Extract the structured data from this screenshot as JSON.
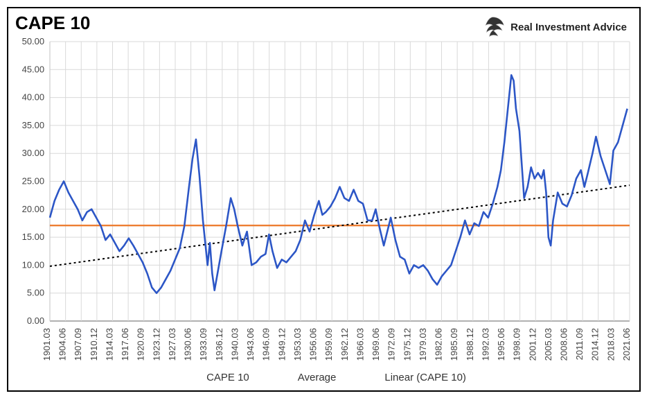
{
  "title": "CAPE 10",
  "brand": "Real Investment Advice",
  "chart": {
    "type": "line",
    "background_color": "#ffffff",
    "grid_color": "#d9d9d9",
    "axis_color": "#808080",
    "label_fontsize": 13,
    "title_fontsize": 26,
    "ylim": [
      0,
      50
    ],
    "ytick_step": 5,
    "ytick_labels": [
      "0.00",
      "5.00",
      "10.00",
      "15.00",
      "20.00",
      "25.00",
      "30.00",
      "35.00",
      "40.00",
      "45.00",
      "50.00"
    ],
    "x_categories": [
      "1901.03",
      "1904.06",
      "1907.09",
      "1910.12",
      "1914.03",
      "1917.06",
      "1920.09",
      "1923.12",
      "1927.03",
      "1930.06",
      "1933.09",
      "1936.12",
      "1940.03",
      "1943.06",
      "1946.09",
      "1949.12",
      "1953.03",
      "1956.06",
      "1959.09",
      "1962.12",
      "1966.03",
      "1969.06",
      "1972.09",
      "1975.12",
      "1979.03",
      "1982.06",
      "1985.09",
      "1988.12",
      "1992.03",
      "1995.06",
      "1998.09",
      "2001.12",
      "2005.03",
      "2008.06",
      "2011.09",
      "2014.12",
      "2018.03",
      "2021.06"
    ],
    "series": [
      {
        "name": "CAPE 10",
        "color": "#2c56c6",
        "line_width": 2.6,
        "points": [
          [
            0.0,
            18.5
          ],
          [
            0.008,
            21.5
          ],
          [
            0.016,
            23.5
          ],
          [
            0.024,
            25.0
          ],
          [
            0.032,
            23.0
          ],
          [
            0.04,
            21.5
          ],
          [
            0.048,
            20.0
          ],
          [
            0.056,
            18.0
          ],
          [
            0.064,
            19.5
          ],
          [
            0.072,
            20.0
          ],
          [
            0.08,
            18.5
          ],
          [
            0.088,
            17.0
          ],
          [
            0.096,
            14.5
          ],
          [
            0.104,
            15.5
          ],
          [
            0.112,
            14.0
          ],
          [
            0.12,
            12.5
          ],
          [
            0.128,
            13.5
          ],
          [
            0.136,
            14.8
          ],
          [
            0.144,
            13.5
          ],
          [
            0.152,
            12.0
          ],
          [
            0.16,
            10.5
          ],
          [
            0.168,
            8.5
          ],
          [
            0.176,
            6.0
          ],
          [
            0.184,
            5.0
          ],
          [
            0.192,
            6.0
          ],
          [
            0.2,
            7.5
          ],
          [
            0.208,
            9.0
          ],
          [
            0.216,
            11.0
          ],
          [
            0.224,
            13.0
          ],
          [
            0.232,
            17.0
          ],
          [
            0.24,
            24.0
          ],
          [
            0.246,
            29.0
          ],
          [
            0.252,
            32.5
          ],
          [
            0.258,
            26.0
          ],
          [
            0.264,
            18.0
          ],
          [
            0.272,
            10.0
          ],
          [
            0.276,
            14.0
          ],
          [
            0.28,
            8.5
          ],
          [
            0.284,
            5.5
          ],
          [
            0.29,
            9.0
          ],
          [
            0.296,
            12.5
          ],
          [
            0.304,
            17.0
          ],
          [
            0.312,
            22.0
          ],
          [
            0.318,
            20.0
          ],
          [
            0.324,
            17.0
          ],
          [
            0.332,
            13.5
          ],
          [
            0.34,
            16.0
          ],
          [
            0.344,
            13.0
          ],
          [
            0.348,
            10.0
          ],
          [
            0.356,
            10.5
          ],
          [
            0.364,
            11.5
          ],
          [
            0.372,
            12.0
          ],
          [
            0.378,
            15.5
          ],
          [
            0.384,
            12.5
          ],
          [
            0.392,
            9.5
          ],
          [
            0.4,
            11.0
          ],
          [
            0.408,
            10.5
          ],
          [
            0.416,
            11.5
          ],
          [
            0.424,
            12.5
          ],
          [
            0.432,
            14.5
          ],
          [
            0.44,
            18.0
          ],
          [
            0.448,
            16.0
          ],
          [
            0.456,
            19.0
          ],
          [
            0.464,
            21.5
          ],
          [
            0.47,
            19.0
          ],
          [
            0.476,
            19.5
          ],
          [
            0.484,
            20.5
          ],
          [
            0.492,
            22.0
          ],
          [
            0.5,
            24.0
          ],
          [
            0.508,
            22.0
          ],
          [
            0.516,
            21.5
          ],
          [
            0.524,
            23.5
          ],
          [
            0.532,
            21.5
          ],
          [
            0.54,
            21.0
          ],
          [
            0.548,
            18.0
          ],
          [
            0.556,
            18.0
          ],
          [
            0.562,
            20.0
          ],
          [
            0.568,
            17.0
          ],
          [
            0.576,
            13.5
          ],
          [
            0.582,
            16.0
          ],
          [
            0.588,
            18.5
          ],
          [
            0.596,
            14.5
          ],
          [
            0.604,
            11.5
          ],
          [
            0.612,
            11.0
          ],
          [
            0.62,
            8.5
          ],
          [
            0.628,
            10.0
          ],
          [
            0.636,
            9.5
          ],
          [
            0.644,
            10.0
          ],
          [
            0.652,
            9.0
          ],
          [
            0.66,
            7.5
          ],
          [
            0.668,
            6.5
          ],
          [
            0.676,
            8.0
          ],
          [
            0.684,
            9.0
          ],
          [
            0.692,
            10.0
          ],
          [
            0.7,
            12.5
          ],
          [
            0.708,
            15.0
          ],
          [
            0.716,
            18.0
          ],
          [
            0.724,
            15.5
          ],
          [
            0.732,
            17.5
          ],
          [
            0.74,
            17.0
          ],
          [
            0.748,
            19.5
          ],
          [
            0.756,
            18.5
          ],
          [
            0.764,
            21.0
          ],
          [
            0.772,
            24.0
          ],
          [
            0.778,
            27.0
          ],
          [
            0.784,
            32.0
          ],
          [
            0.79,
            38.0
          ],
          [
            0.796,
            44.0
          ],
          [
            0.8,
            43.0
          ],
          [
            0.804,
            38.0
          ],
          [
            0.81,
            34.0
          ],
          [
            0.814,
            28.0
          ],
          [
            0.818,
            22.0
          ],
          [
            0.824,
            24.0
          ],
          [
            0.83,
            27.5
          ],
          [
            0.836,
            25.5
          ],
          [
            0.842,
            26.5
          ],
          [
            0.848,
            25.5
          ],
          [
            0.852,
            27.0
          ],
          [
            0.856,
            23.0
          ],
          [
            0.86,
            15.0
          ],
          [
            0.864,
            13.5
          ],
          [
            0.868,
            18.0
          ],
          [
            0.876,
            23.0
          ],
          [
            0.884,
            21.0
          ],
          [
            0.892,
            20.5
          ],
          [
            0.9,
            22.5
          ],
          [
            0.908,
            25.5
          ],
          [
            0.916,
            27.0
          ],
          [
            0.922,
            24.0
          ],
          [
            0.928,
            26.5
          ],
          [
            0.936,
            30.0
          ],
          [
            0.942,
            33.0
          ],
          [
            0.95,
            29.5
          ],
          [
            0.958,
            27.0
          ],
          [
            0.966,
            24.5
          ],
          [
            0.972,
            30.5
          ],
          [
            0.98,
            32.0
          ],
          [
            0.988,
            35.0
          ],
          [
            0.996,
            38.0
          ]
        ]
      }
    ],
    "average": {
      "name": "Average",
      "value": 17.1,
      "color": "#ed7d31",
      "line_width": 2.4
    },
    "trend": {
      "name": "Linear (CAPE 10)",
      "color": "#000000",
      "line_width": 2,
      "dash": "3,4",
      "y_start": 9.8,
      "y_end": 24.3
    }
  },
  "legend": {
    "items": [
      {
        "label": "CAPE 10",
        "color": "#2c56c6",
        "style": "solid",
        "width": 3
      },
      {
        "label": "Average",
        "color": "#ed7d31",
        "style": "solid",
        "width": 2.4
      },
      {
        "label": "Linear (CAPE 10)",
        "color": "#000000",
        "style": "dotted",
        "width": 2
      }
    ]
  }
}
